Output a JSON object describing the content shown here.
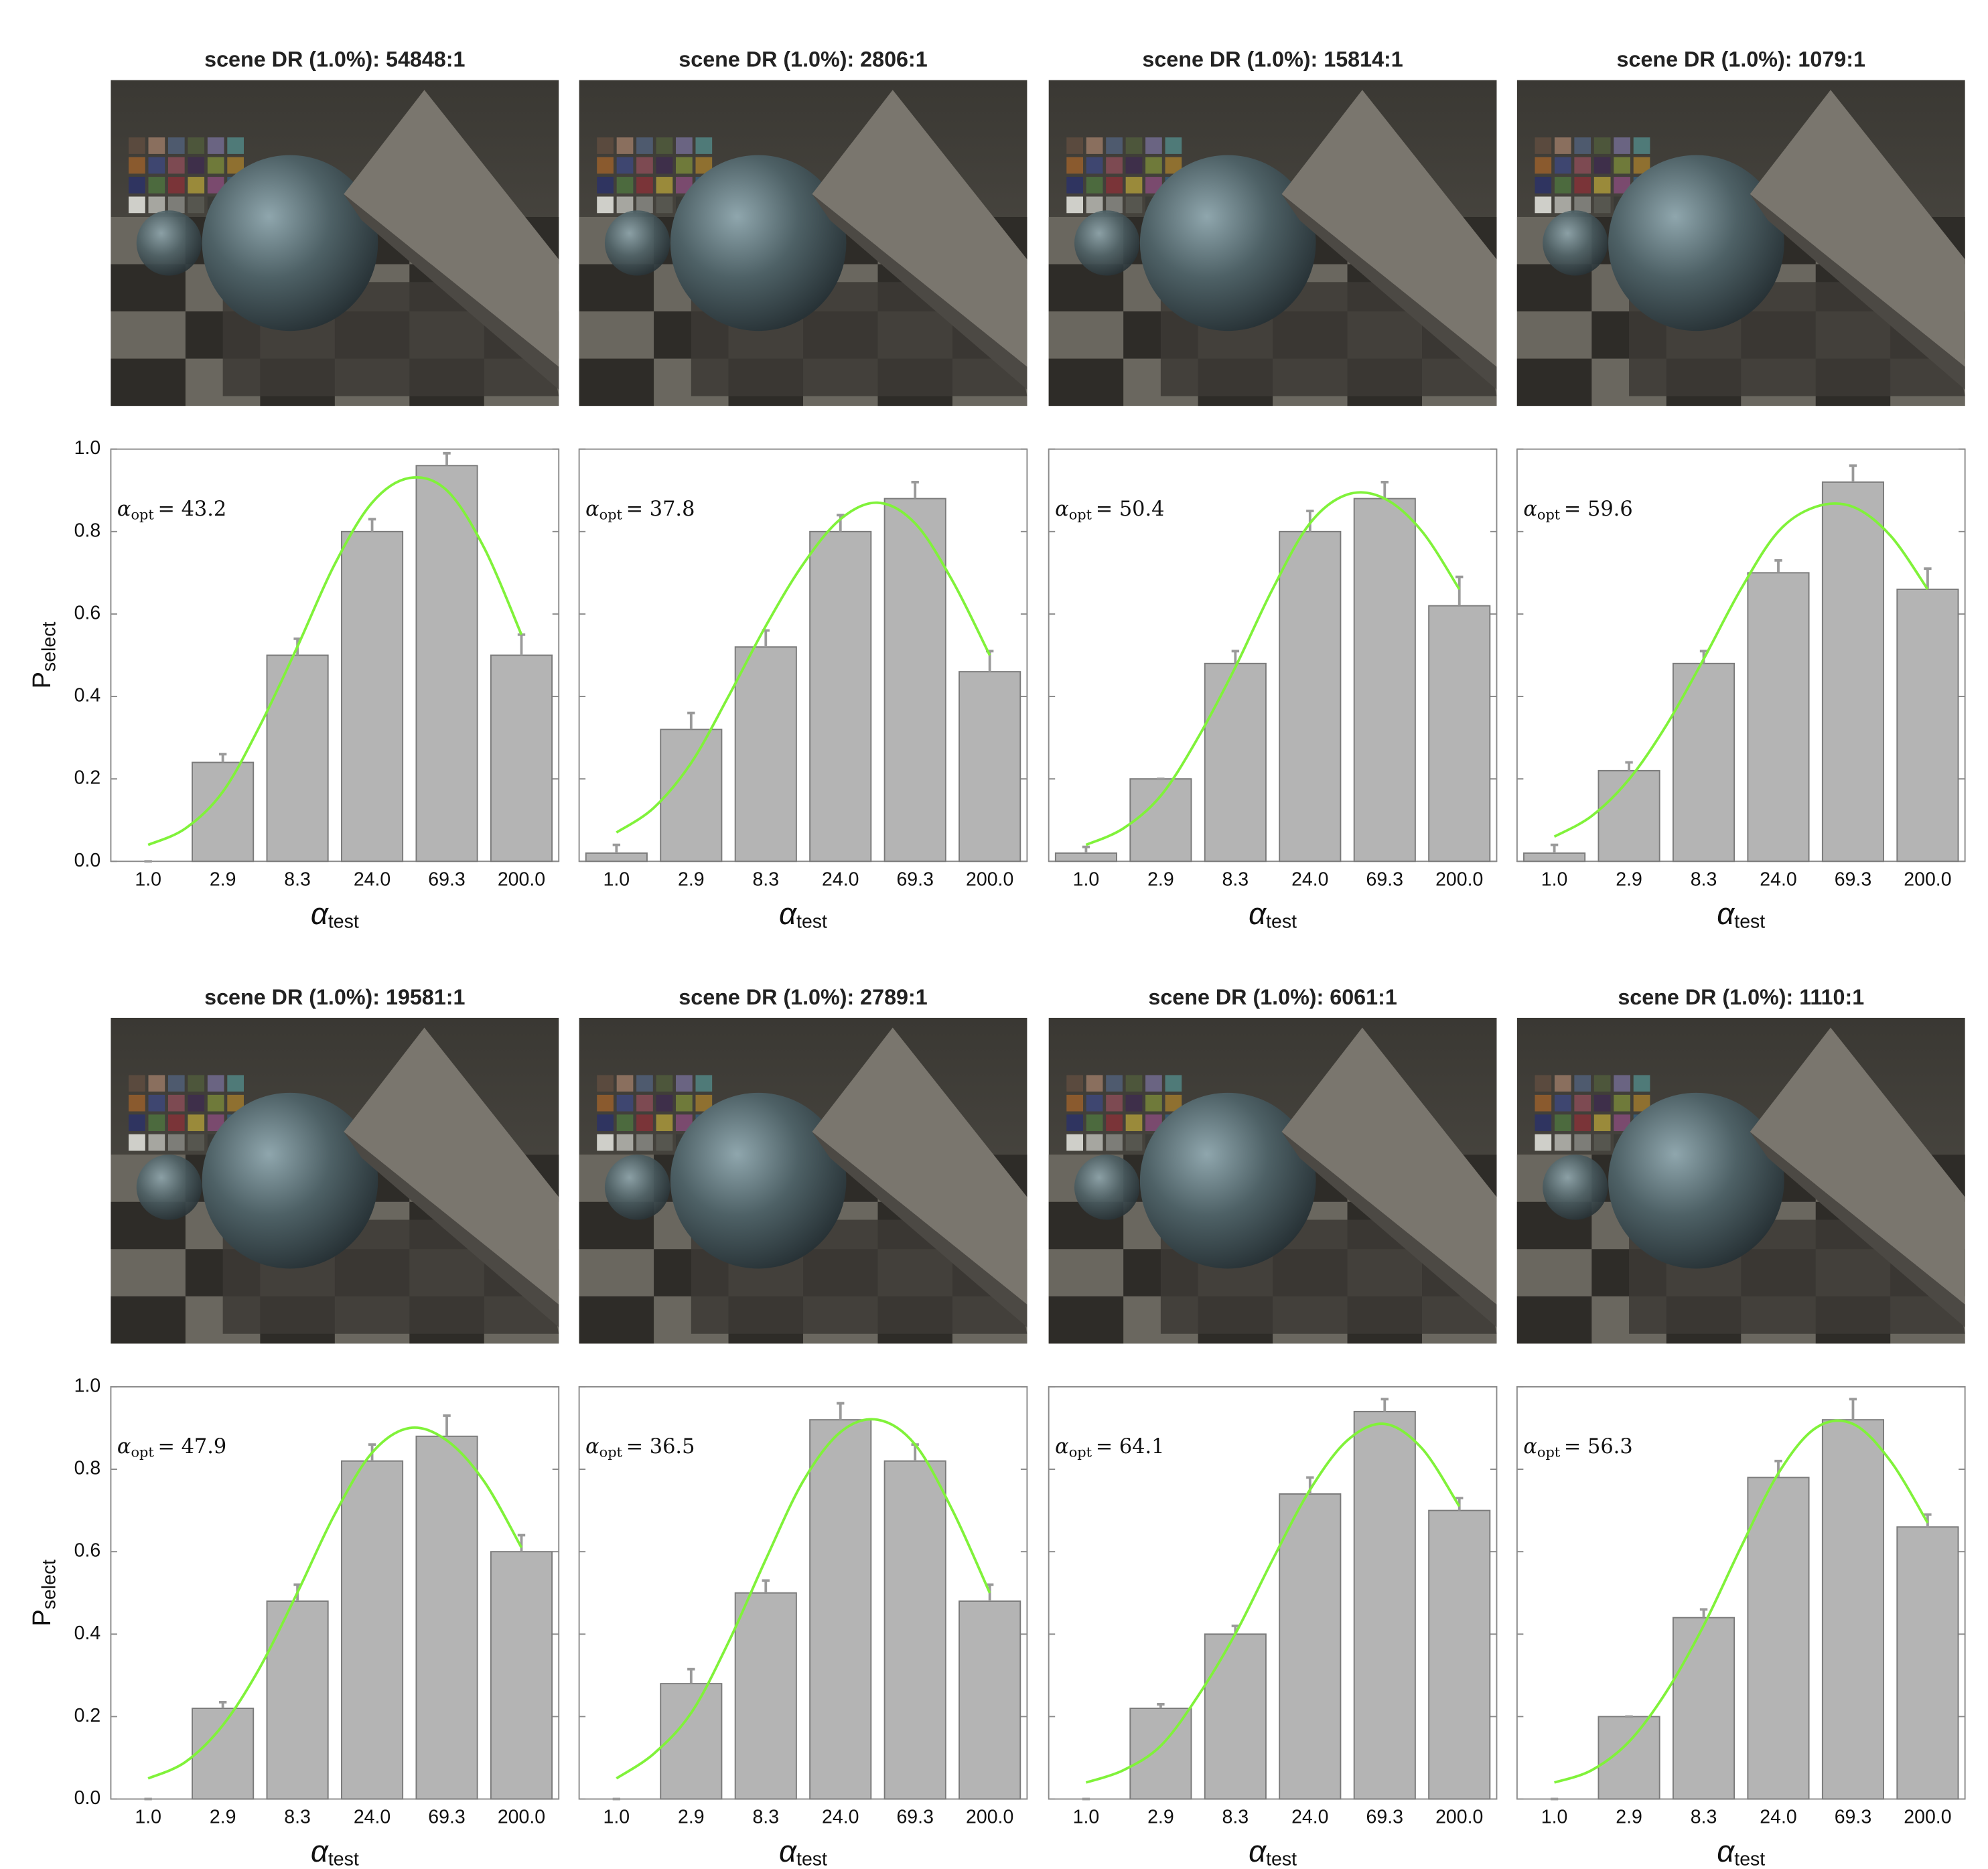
{
  "chart_data": [
    {
      "type": "bar",
      "title": "scene DR (1.0%): 54848:1",
      "categories": [
        "1.0",
        "2.9",
        "8.3",
        "24.0",
        "69.3",
        "200.0"
      ],
      "values": [
        0,
        0.24,
        0.5,
        0.8,
        0.96,
        0.5
      ],
      "errors": [
        0,
        0.02,
        0.04,
        0.03,
        0.03,
        0.05
      ],
      "color": "#b4b4b4",
      "fit": {
        "color": "#80f23a",
        "x": [
          1,
          1.7,
          2.9,
          4.9,
          8.3,
          14.1,
          24,
          40.8,
          69.3,
          118,
          200
        ],
        "values": [
          0.04,
          0.08,
          0.17,
          0.33,
          0.52,
          0.72,
          0.87,
          0.93,
          0.9,
          0.76,
          0.55
        ]
      },
      "annotation": {
        "symbol": "α",
        "subscript": "opt",
        "text": "= 43.2"
      },
      "xlabel": {
        "symbol": "α",
        "subscript": "test"
      },
      "ylabel": {
        "symbol": "P",
        "subscript": "select"
      },
      "ylim": [
        0,
        1
      ],
      "yticks": [
        {
          "value": 0,
          "label": "0.0"
        },
        0.2,
        0.4,
        0.6,
        0.8,
        {
          "value": 1,
          "label": "1.0"
        }
      ],
      "ytick_labels": true
    },
    {
      "type": "bar",
      "title": "scene DR (1.0%): 2806:1",
      "categories": [
        "1.0",
        "2.9",
        "8.3",
        "24.0",
        "69.3",
        "200.0"
      ],
      "values": [
        0.02,
        0.32,
        0.52,
        0.8,
        0.88,
        0.46
      ],
      "errors": [
        0.02,
        0.04,
        0.04,
        0.04,
        0.04,
        0.05
      ],
      "color": "#b4b4b4",
      "fit": {
        "color": "#80f23a",
        "x": [
          1,
          1.7,
          2.9,
          4.9,
          8.3,
          14.1,
          24,
          40.8,
          69.3,
          118,
          200
        ],
        "values": [
          0.07,
          0.13,
          0.24,
          0.4,
          0.57,
          0.72,
          0.83,
          0.87,
          0.82,
          0.68,
          0.5
        ]
      },
      "annotation": {
        "symbol": "α",
        "subscript": "opt",
        "text": "= 37.8"
      },
      "xlabel": {
        "symbol": "α",
        "subscript": "test"
      },
      "ylim": [
        0,
        1
      ],
      "yticks": [
        0,
        0.2,
        0.4,
        0.6,
        0.8,
        1
      ],
      "ytick_labels": false
    },
    {
      "type": "bar",
      "title": "scene DR (1.0%): 15814:1",
      "categories": [
        "1.0",
        "2.9",
        "8.3",
        "24.0",
        "69.3",
        "200.0"
      ],
      "values": [
        0.02,
        0.2,
        0.48,
        0.8,
        0.88,
        0.62
      ],
      "errors": [
        0.015,
        0,
        0.03,
        0.05,
        0.04,
        0.07
      ],
      "color": "#b4b4b4",
      "fit": {
        "color": "#80f23a",
        "x": [
          1,
          1.7,
          2.9,
          4.9,
          8.3,
          14.1,
          24,
          40.8,
          69.3,
          118,
          200
        ],
        "values": [
          0.04,
          0.08,
          0.16,
          0.3,
          0.47,
          0.66,
          0.82,
          0.89,
          0.88,
          0.8,
          0.66
        ]
      },
      "annotation": {
        "symbol": "α",
        "subscript": "opt",
        "text": "= 50.4"
      },
      "xlabel": {
        "symbol": "α",
        "subscript": "test"
      },
      "ylim": [
        0,
        1
      ],
      "yticks": [
        0,
        0.2,
        0.4,
        0.6,
        0.8,
        1
      ],
      "ytick_labels": false
    },
    {
      "type": "bar",
      "title": "scene DR (1.0%): 1079:1",
      "categories": [
        "1.0",
        "2.9",
        "8.3",
        "24.0",
        "69.3",
        "200.0"
      ],
      "values": [
        0.02,
        0.22,
        0.48,
        0.7,
        0.92,
        0.66
      ],
      "errors": [
        0.02,
        0.02,
        0.03,
        0.03,
        0.04,
        0.05
      ],
      "color": "#b4b4b4",
      "fit": {
        "color": "#80f23a",
        "x": [
          1,
          1.7,
          2.9,
          4.9,
          8.3,
          14.1,
          24,
          40.8,
          69.3,
          118,
          200
        ],
        "values": [
          0.06,
          0.11,
          0.2,
          0.33,
          0.49,
          0.66,
          0.8,
          0.86,
          0.86,
          0.79,
          0.66
        ]
      },
      "annotation": {
        "symbol": "α",
        "subscript": "opt",
        "text": "= 59.6"
      },
      "xlabel": {
        "symbol": "α",
        "subscript": "test"
      },
      "ylim": [
        0,
        1
      ],
      "yticks": [
        0,
        0.2,
        0.4,
        0.6,
        0.8,
        1
      ],
      "ytick_labels": false
    },
    {
      "type": "bar",
      "title": "scene DR (1.0%): 19581:1",
      "categories": [
        "1.0",
        "2.9",
        "8.3",
        "24.0",
        "69.3",
        "200.0"
      ],
      "values": [
        0,
        0.22,
        0.48,
        0.82,
        0.88,
        0.6
      ],
      "errors": [
        0,
        0.015,
        0.04,
        0.04,
        0.05,
        0.04
      ],
      "color": "#b4b4b4",
      "fit": {
        "color": "#80f23a",
        "x": [
          1,
          1.7,
          2.9,
          4.9,
          8.3,
          14.1,
          24,
          40.8,
          69.3,
          118,
          200
        ],
        "values": [
          0.05,
          0.09,
          0.18,
          0.32,
          0.5,
          0.69,
          0.84,
          0.9,
          0.87,
          0.77,
          0.61
        ]
      },
      "annotation": {
        "symbol": "α",
        "subscript": "opt",
        "text": "= 47.9"
      },
      "xlabel": {
        "symbol": "α",
        "subscript": "test"
      },
      "ylabel": {
        "symbol": "P",
        "subscript": "select"
      },
      "ylim": [
        0,
        1
      ],
      "yticks": [
        {
          "value": 0,
          "label": "0.0"
        },
        0.2,
        0.4,
        0.6,
        0.8,
        {
          "value": 1,
          "label": "1.0"
        }
      ],
      "ytick_labels": true
    },
    {
      "type": "bar",
      "title": "scene DR (1.0%): 2789:1",
      "categories": [
        "1.0",
        "2.9",
        "8.3",
        "24.0",
        "69.3",
        "200.0"
      ],
      "values": [
        0,
        0.28,
        0.5,
        0.92,
        0.82,
        0.48
      ],
      "errors": [
        0,
        0.035,
        0.03,
        0.04,
        0.04,
        0.04
      ],
      "color": "#b4b4b4",
      "fit": {
        "color": "#80f23a",
        "x": [
          1,
          1.7,
          2.9,
          4.9,
          8.3,
          14.1,
          24,
          40.8,
          69.3,
          118,
          200
        ],
        "values": [
          0.05,
          0.11,
          0.21,
          0.38,
          0.58,
          0.77,
          0.89,
          0.92,
          0.86,
          0.7,
          0.5
        ]
      },
      "annotation": {
        "symbol": "α",
        "subscript": "opt",
        "text": "= 36.5"
      },
      "xlabel": {
        "symbol": "α",
        "subscript": "test"
      },
      "ylim": [
        0,
        1
      ],
      "yticks": [
        0,
        0.2,
        0.4,
        0.6,
        0.8,
        1
      ],
      "ytick_labels": false
    },
    {
      "type": "bar",
      "title": "scene DR (1.0%): 6061:1",
      "categories": [
        "1.0",
        "2.9",
        "8.3",
        "24.0",
        "69.3",
        "200.0"
      ],
      "values": [
        0,
        0.22,
        0.4,
        0.74,
        0.94,
        0.7
      ],
      "errors": [
        0,
        0.01,
        0.02,
        0.04,
        0.03,
        0.03
      ],
      "color": "#b4b4b4",
      "fit": {
        "color": "#80f23a",
        "x": [
          1,
          1.7,
          2.9,
          4.9,
          8.3,
          14.1,
          24,
          40.8,
          69.3,
          118,
          200
        ],
        "values": [
          0.04,
          0.07,
          0.13,
          0.25,
          0.4,
          0.58,
          0.75,
          0.87,
          0.91,
          0.85,
          0.71
        ]
      },
      "annotation": {
        "symbol": "α",
        "subscript": "opt",
        "text": "= 64.1"
      },
      "xlabel": {
        "symbol": "α",
        "subscript": "test"
      },
      "ylim": [
        0,
        1
      ],
      "yticks": [
        0,
        0.2,
        0.4,
        0.6,
        0.8,
        1
      ],
      "ytick_labels": false
    },
    {
      "type": "bar",
      "title": "scene DR (1.0%): 1110:1",
      "categories": [
        "1.0",
        "2.9",
        "8.3",
        "24.0",
        "69.3",
        "200.0"
      ],
      "values": [
        0,
        0.2,
        0.44,
        0.78,
        0.92,
        0.66
      ],
      "errors": [
        0,
        0,
        0.02,
        0.04,
        0.05,
        0.03
      ],
      "color": "#b4b4b4",
      "fit": {
        "color": "#80f23a",
        "x": [
          1,
          1.7,
          2.9,
          4.9,
          8.3,
          14.1,
          24,
          40.8,
          69.3,
          118,
          200
        ],
        "values": [
          0.04,
          0.07,
          0.14,
          0.26,
          0.42,
          0.61,
          0.79,
          0.9,
          0.91,
          0.82,
          0.67
        ]
      },
      "annotation": {
        "symbol": "α",
        "subscript": "opt",
        "text": "= 56.3"
      },
      "xlabel": {
        "symbol": "α",
        "subscript": "test"
      },
      "ylim": [
        0,
        1
      ],
      "yticks": [
        0,
        0.2,
        0.4,
        0.6,
        0.8,
        1
      ],
      "ytick_labels": false
    }
  ]
}
